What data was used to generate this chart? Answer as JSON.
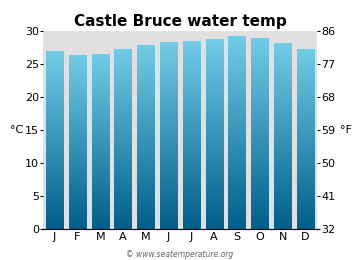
{
  "title": "Castle Bruce water temp",
  "months": [
    "J",
    "F",
    "M",
    "A",
    "M",
    "J",
    "J",
    "A",
    "S",
    "O",
    "N",
    "D"
  ],
  "values_c": [
    27.0,
    26.4,
    26.5,
    27.2,
    27.9,
    28.3,
    28.4,
    28.7,
    29.2,
    28.9,
    28.2,
    27.3
  ],
  "ylabel_left": "°C",
  "ylabel_right": "°F",
  "ylim_left": [
    0,
    30
  ],
  "yticks_left": [
    0,
    5,
    10,
    15,
    20,
    25,
    30
  ],
  "yticks_right": [
    32,
    41,
    50,
    59,
    68,
    77,
    86
  ],
  "bar_color_top": "#72cce8",
  "bar_color_bottom": "#005f8a",
  "bg_color": "#e0e0e0",
  "fig_bg": "#ffffff",
  "watermark": "© www.seatemperature.org",
  "title_fontsize": 11,
  "axis_fontsize": 8,
  "bar_width": 0.75
}
